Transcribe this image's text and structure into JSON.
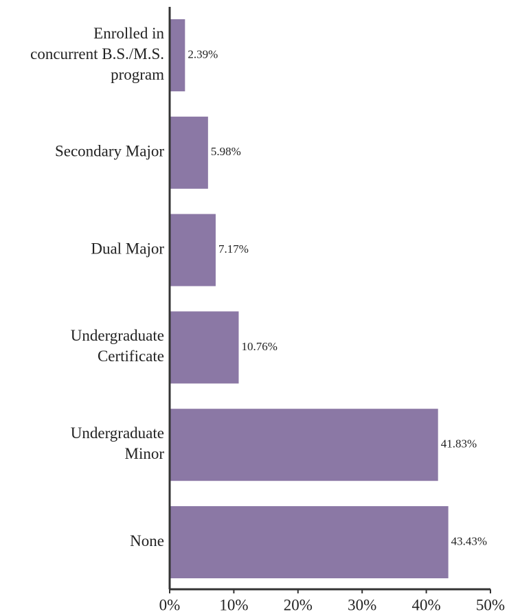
{
  "chart_data": {
    "type": "bar",
    "orientation": "horizontal",
    "categories": [
      [
        "Enrolled in",
        "concurrent B.S./M.S.",
        "program"
      ],
      [
        "Secondary Major"
      ],
      [
        "Dual Major"
      ],
      [
        "Undergraduate",
        "Certificate"
      ],
      [
        "Undergraduate",
        "Minor"
      ],
      [
        "None"
      ]
    ],
    "values": [
      2.39,
      5.98,
      7.17,
      10.76,
      41.83,
      43.43
    ],
    "value_labels": [
      "2.39%",
      "5.98%",
      "7.17%",
      "10.76%",
      "41.83%",
      "43.43%"
    ],
    "color": "#8b78a5",
    "xlim": [
      0,
      50
    ],
    "xticks": [
      {
        "value": 0,
        "label": "0%"
      },
      {
        "value": 10,
        "label": "10%"
      },
      {
        "value": 20,
        "label": "20%"
      },
      {
        "value": 30,
        "label": "30%"
      },
      {
        "value": 40,
        "label": "40%"
      },
      {
        "value": 50,
        "label": "50%"
      }
    ]
  }
}
